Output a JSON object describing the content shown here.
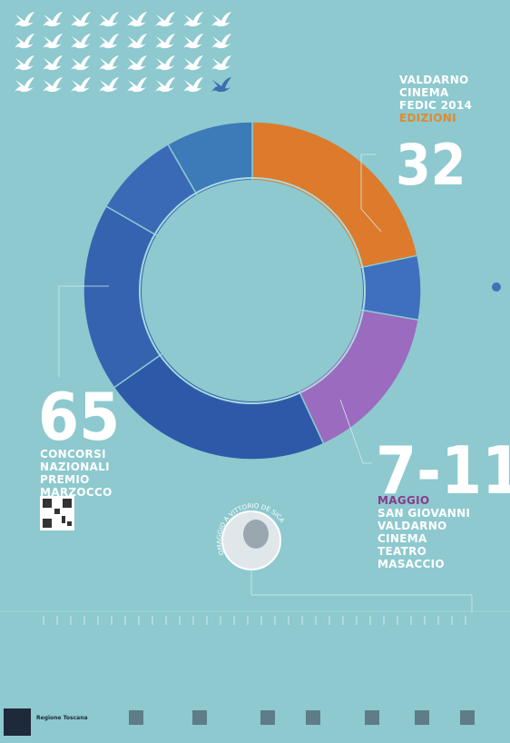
{
  "edition": {
    "lines": [
      "VALDARNO",
      "CINEMA",
      "FEDIC 2014"
    ],
    "label": "EDIZIONI",
    "number": "32"
  },
  "contest": {
    "number": "65",
    "lines": [
      "CONCORSI",
      "NAZIONALI",
      "PREMIO",
      "MARZOCCO"
    ]
  },
  "dates": {
    "range": "7-11",
    "month": "MAGGIO",
    "lines": [
      "SAN GIOVANNI",
      "VALDARNO",
      "CINEMA",
      "TEATRO",
      "MASACCIO"
    ]
  },
  "tribute": "OMAGGIO A VITTORIO DE SICA",
  "footer": {
    "sponsor": "Regione Toscana"
  }
}
